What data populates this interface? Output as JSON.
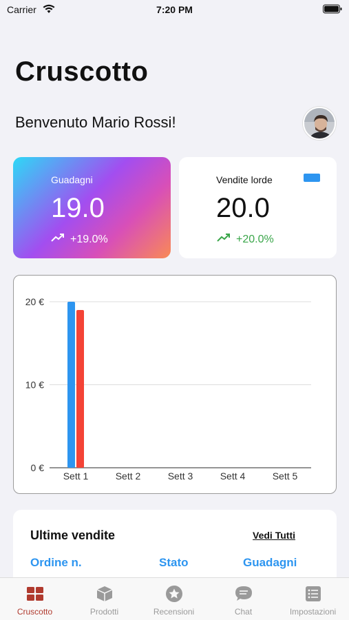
{
  "status_bar": {
    "carrier": "Carrier",
    "time": "7:20 PM"
  },
  "header": {
    "title": "Cruscotto",
    "welcome": "Benvenuto Mario Rossi!"
  },
  "cards": {
    "earnings": {
      "label": "Guadagni",
      "value": "19.0",
      "trend": "+19.0%",
      "icon": "trending-up-icon"
    },
    "sales": {
      "label": "Vendite lorde",
      "value": "20.0",
      "trend": "+20.0%",
      "icon": "trending-up-icon",
      "chip_color": "#2d95f0"
    }
  },
  "chart_data": {
    "type": "bar",
    "categories": [
      "Sett 1",
      "Sett 2",
      "Sett 3",
      "Sett 4",
      "Sett 5"
    ],
    "series": [
      {
        "color": "#2d95f0",
        "values": [
          20,
          0,
          0,
          0,
          0
        ]
      },
      {
        "color": "#f44336",
        "values": [
          19,
          0,
          0,
          0,
          0
        ]
      }
    ],
    "ylim": [
      0,
      20
    ],
    "yticks": [
      "0 €",
      "10 €",
      "20 €"
    ],
    "ytick_values": [
      0,
      10,
      20
    ],
    "grid": true
  },
  "recent_sales": {
    "title": "Ultime vendite",
    "see_all": "Vedi Tutti",
    "columns": [
      "Ordine n.",
      "Stato",
      "Guadagni"
    ]
  },
  "tabs": [
    {
      "label": "Cruscotto",
      "icon": "dashboard-icon",
      "active": true
    },
    {
      "label": "Prodotti",
      "icon": "box-icon",
      "active": false
    },
    {
      "label": "Recensioni",
      "icon": "star-icon",
      "active": false
    },
    {
      "label": "Chat",
      "icon": "chat-icon",
      "active": false
    },
    {
      "label": "Impostazioni",
      "icon": "list-icon",
      "active": false
    }
  ],
  "colors": {
    "accent": "#2d95f0",
    "active_tab": "#b03a2e",
    "positive": "#3aa64a",
    "negative_series": "#f44336"
  }
}
